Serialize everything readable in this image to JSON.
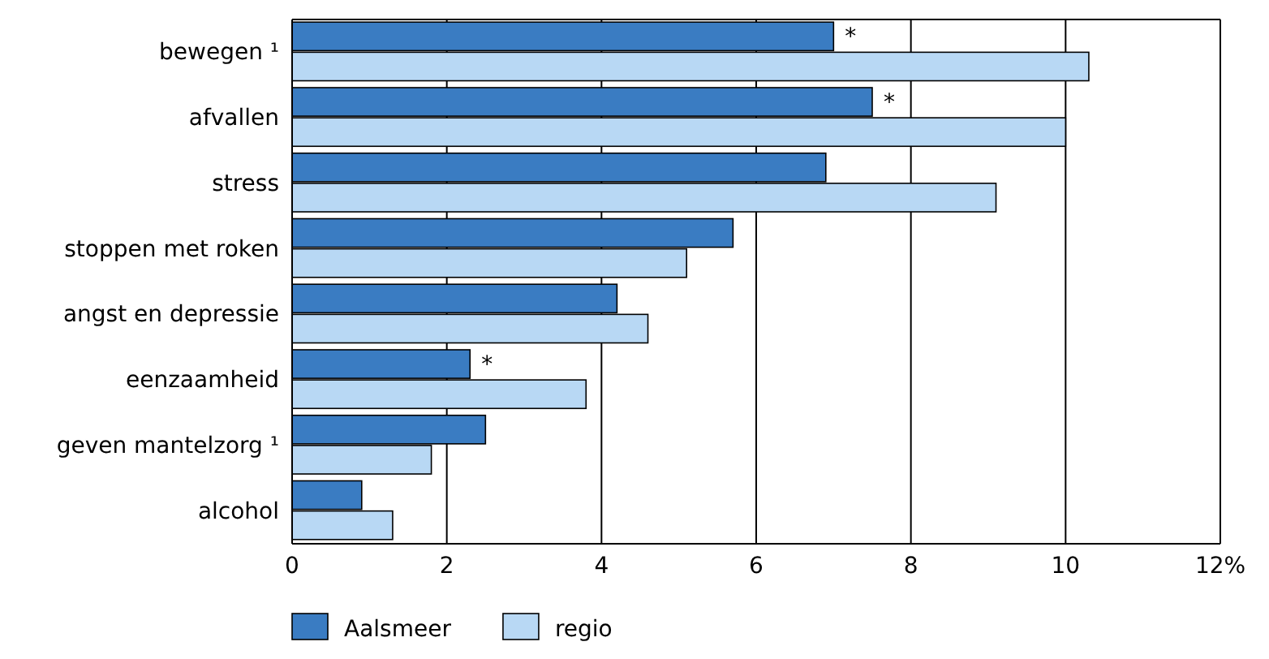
{
  "chart_data": {
    "type": "bar",
    "orientation": "horizontal",
    "categories": [
      "bewegen ¹",
      "afvallen",
      "stress",
      "stoppen met roken",
      "angst en depressie",
      "eenzaamheid",
      "geven mantelzorg ¹",
      "alcohol"
    ],
    "series": [
      {
        "name": "Aalsmeer",
        "color": "#3a7cc2",
        "values": [
          7.0,
          7.5,
          6.9,
          5.7,
          4.2,
          2.3,
          2.5,
          0.9
        ],
        "value_labels": [
          "*",
          "*",
          null,
          null,
          null,
          "*",
          null,
          null
        ]
      },
      {
        "name": "regio",
        "color": "#b8d8f4",
        "values": [
          10.3,
          10.0,
          9.1,
          5.1,
          4.6,
          3.8,
          1.8,
          1.3
        ]
      }
    ],
    "xlim": [
      0,
      12
    ],
    "xticks": [
      0,
      2,
      4,
      6,
      8,
      10,
      {
        "value": 12,
        "label": "12%"
      }
    ],
    "grid": "x",
    "legend": "bottom left"
  }
}
